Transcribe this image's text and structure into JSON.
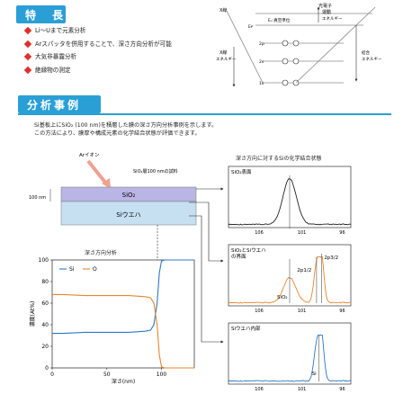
{
  "features": {
    "title": "特　長",
    "items": [
      "Li～Uまで元素分析",
      "Arスパッタを併用することで、深さ方向分析が可能",
      "大気非暴露分析",
      "絶縁物の測定"
    ]
  },
  "energy_diagram": {
    "xray": "X線",
    "xray2": "X線",
    "photoelectron": "光電子",
    "kinetic": "運動",
    "energy1": "エネルギー",
    "energy2": "エネルギー",
    "vacuum": "Eᵥ:真空準位",
    "fermi": "Eғ",
    "binding1": "結合",
    "binding2": "エネルギー",
    "levels": [
      "2p",
      "2s",
      "1s"
    ]
  },
  "cases": {
    "title": "分析事例",
    "desc_line1": "Si基板上にSiO₂ (100 nm)を積層した膜の深さ方向分析事例を示します。",
    "desc_line2": "この方法により、膜厚や構成元素の化学結合状態が評価できます。"
  },
  "sample": {
    "ar_ion": "Arイオン",
    "sample_label": "SiO₂層100 nmの試料",
    "thickness": "100 nm",
    "layer_top": "SiO₂",
    "layer_bottom": "Siウエハ"
  },
  "depth_chart_title": "深さ方向分析",
  "chem_title": "深さ方向に対するSiの化学結合状態",
  "spectra": [
    {
      "label": "SiO₂表面",
      "ticks": [
        "106",
        "101",
        "96"
      ]
    },
    {
      "label": "SiO₂とSiウエハ\nの界面",
      "ticks": [
        "106",
        "101",
        "96"
      ],
      "peak_a": "2p1/2",
      "peak_b": "2p3/2",
      "peak_c": "SiO₂"
    },
    {
      "label": "Siウエハ内部",
      "ticks": [
        "106",
        "101",
        "96"
      ],
      "peak_a": "Si"
    }
  ],
  "chart_data": {
    "type": "line",
    "title": "深さ方向分析",
    "xlabel": "深さ(nm)",
    "ylabel": "濃度(At%)",
    "xlim": [
      0,
      130
    ],
    "ylim": [
      0,
      100
    ],
    "xticks": [
      "0",
      "50",
      "100"
    ],
    "yticks": [
      "0",
      "20",
      "40",
      "60",
      "80",
      "100"
    ],
    "legend_position": "top-left",
    "series": [
      {
        "name": "Si",
        "color": "#2a78c8",
        "x": [
          0,
          10,
          30,
          50,
          70,
          85,
          90,
          93,
          96,
          98,
          100,
          103,
          110,
          120,
          130
        ],
        "y": [
          32,
          32,
          33,
          33,
          33,
          34,
          35,
          40,
          60,
          88,
          99,
          100,
          100,
          100,
          100
        ]
      },
      {
        "name": "O",
        "color": "#e8862a",
        "x": [
          0,
          10,
          30,
          50,
          70,
          85,
          90,
          93,
          96,
          98,
          100,
          103,
          110,
          120,
          130
        ],
        "y": [
          68,
          68,
          67,
          67,
          67,
          66,
          65,
          60,
          40,
          12,
          1,
          0,
          0,
          0,
          0
        ]
      }
    ]
  }
}
